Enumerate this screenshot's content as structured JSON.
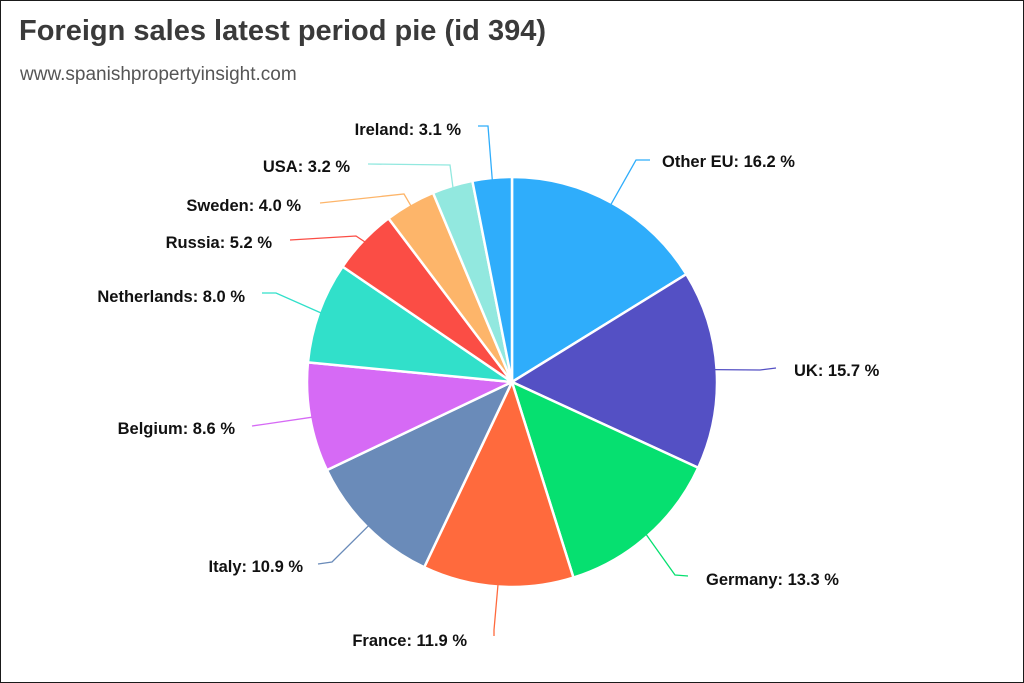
{
  "header": {
    "title": "Foreign sales latest period pie (id 394)",
    "subtitle": "www.spanishpropertyinsight.com"
  },
  "chart_data": {
    "type": "pie",
    "title": "Foreign sales latest period pie (id 394)",
    "subtitle": "www.spanishpropertyinsight.com",
    "unit": "%",
    "legend": "none",
    "slices": [
      {
        "label": "Other EU",
        "value": 16.2,
        "display": "Other EU: 16.2 %",
        "color": "#2fadfb"
      },
      {
        "label": "UK",
        "value": 15.7,
        "display": "UK: 15.7 %",
        "color": "#5450c4"
      },
      {
        "label": "Germany",
        "value": 13.3,
        "display": "Germany: 13.3 %",
        "color": "#06e070"
      },
      {
        "label": "France",
        "value": 11.9,
        "display": "France: 11.9 %",
        "color": "#ff6a3d"
      },
      {
        "label": "Italy",
        "value": 10.9,
        "display": "Italy: 10.9 %",
        "color": "#6a8bb9"
      },
      {
        "label": "Belgium",
        "value": 8.6,
        "display": "Belgium: 8.6 %",
        "color": "#d66af5"
      },
      {
        "label": "Netherlands",
        "value": 8.0,
        "display": "Netherlands: 8.0 %",
        "color": "#31e0ca"
      },
      {
        "label": "Russia",
        "value": 5.2,
        "display": "Russia: 5.2 %",
        "color": "#fb4d45"
      },
      {
        "label": "Sweden",
        "value": 4.0,
        "display": "Sweden: 4.0 %",
        "color": "#fdb56a"
      },
      {
        "label": "USA",
        "value": 3.2,
        "display": "USA: 3.2 %",
        "color": "#92e8df"
      },
      {
        "label": "Ireland",
        "value": 3.1,
        "display": "Ireland: 3.1 %",
        "color": "#2fadfb"
      }
    ]
  }
}
